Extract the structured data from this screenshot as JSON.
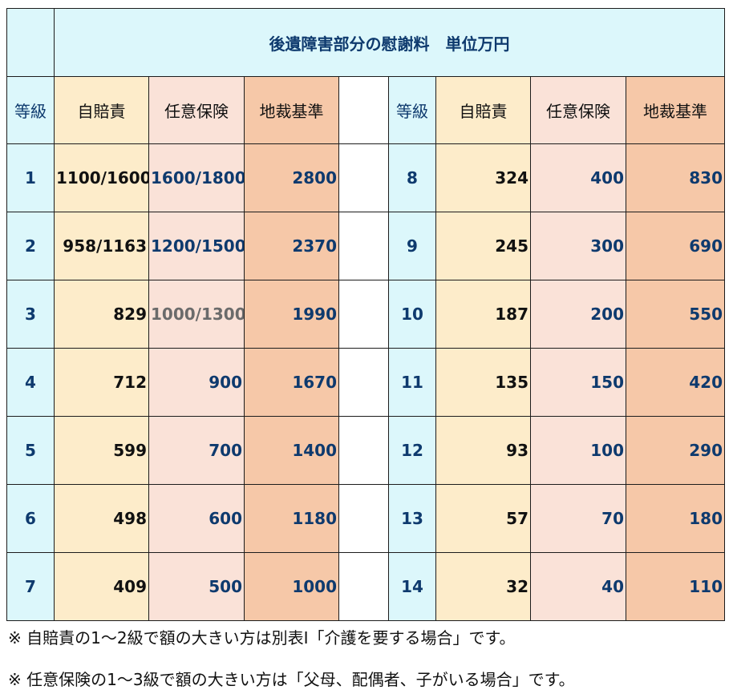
{
  "title": "後遺障害部分の慰謝料　単位万円",
  "headers": {
    "grade": "等級",
    "jibaiseki": "自賠責",
    "nini": "任意保険",
    "chisai": "地裁基準"
  },
  "rows": [
    {
      "left": {
        "grade": "1",
        "jibaiseki": "1100/1600",
        "nini": "1600/1800",
        "chisai": "2800"
      },
      "right": {
        "grade": "8",
        "jibaiseki": "324",
        "nini": "400",
        "chisai": "830"
      }
    },
    {
      "left": {
        "grade": "2",
        "jibaiseki": "958/1163",
        "nini": "1200/1500",
        "chisai": "2370"
      },
      "right": {
        "grade": "9",
        "jibaiseki": "245",
        "nini": "300",
        "chisai": "690"
      }
    },
    {
      "left": {
        "grade": "3",
        "jibaiseki": "829",
        "nini": "1000/1300",
        "chisai": "1990"
      },
      "right": {
        "grade": "10",
        "jibaiseki": "187",
        "nini": "200",
        "chisai": "550"
      }
    },
    {
      "left": {
        "grade": "4",
        "jibaiseki": "712",
        "nini": "900",
        "chisai": "1670"
      },
      "right": {
        "grade": "11",
        "jibaiseki": "135",
        "nini": "150",
        "chisai": "420"
      }
    },
    {
      "left": {
        "grade": "5",
        "jibaiseki": "599",
        "nini": "700",
        "chisai": "1400"
      },
      "right": {
        "grade": "12",
        "jibaiseki": "93",
        "nini": "100",
        "chisai": "290"
      }
    },
    {
      "left": {
        "grade": "6",
        "jibaiseki": "498",
        "nini": "600",
        "chisai": "1180"
      },
      "right": {
        "grade": "13",
        "jibaiseki": "57",
        "nini": "70",
        "chisai": "180"
      }
    },
    {
      "left": {
        "grade": "7",
        "jibaiseki": "409",
        "nini": "500",
        "chisai": "1000"
      },
      "right": {
        "grade": "14",
        "jibaiseki": "32",
        "nini": "40",
        "chisai": "110"
      }
    }
  ],
  "notes": [
    "※ 自賠責の1～2級で額の大きい方は別表Ⅰ「介護を要する場合」です。",
    "※ 任意保険の1～3級で額の大きい方は「父母、配偶者、子がいる場合」です。"
  ],
  "colors": {
    "grade_bg": "#dcf7fb",
    "jibaiseki_bg": "#fdecca",
    "nini_bg": "#fae2d8",
    "chisai_bg": "#f6c8a8",
    "value_text": "#0e3a6e"
  }
}
